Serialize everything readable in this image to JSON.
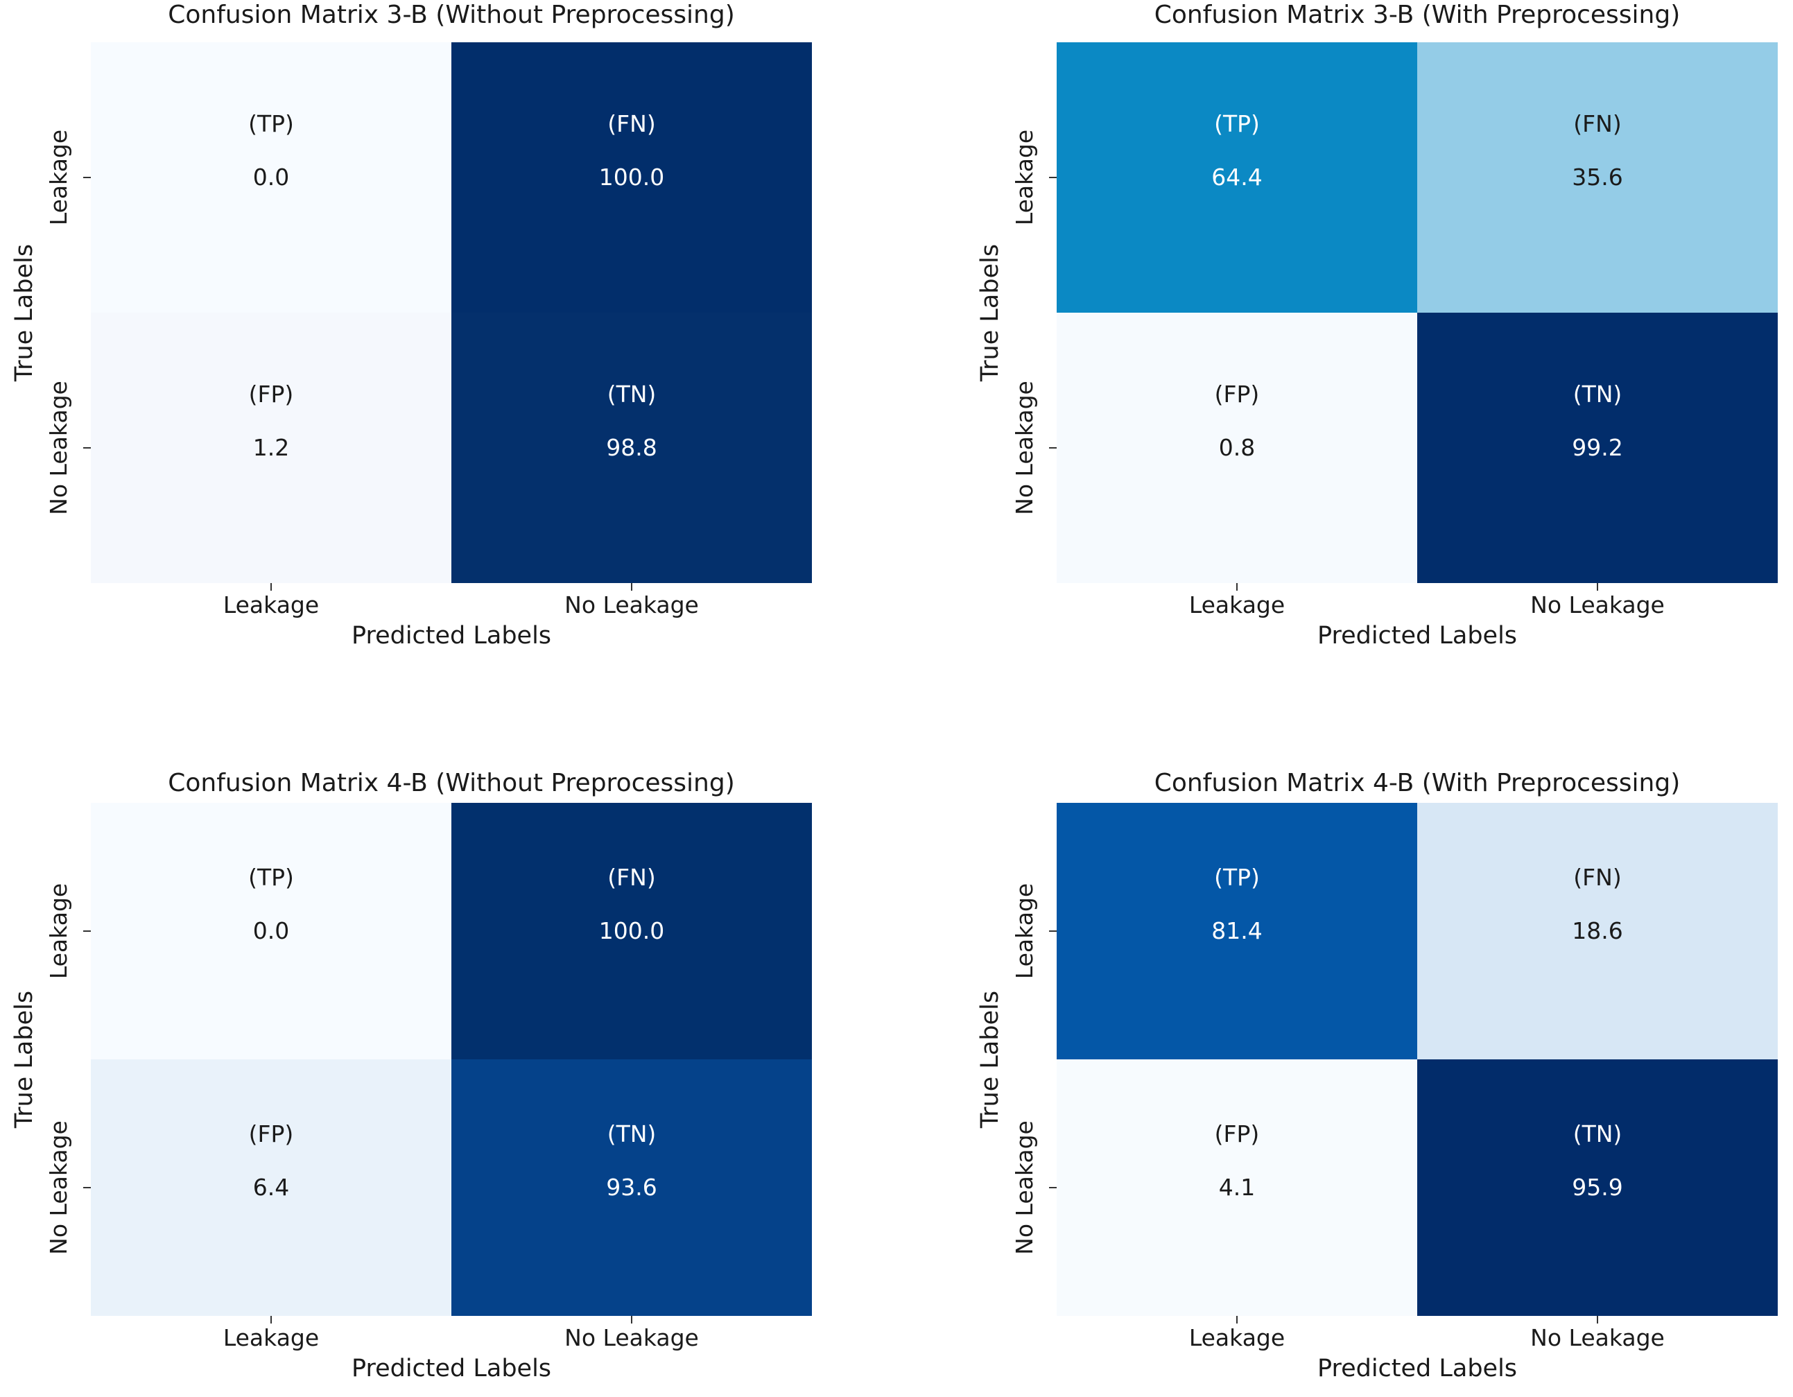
{
  "figure": {
    "background": "#ffffff",
    "text_color_dark": "#1a1a1a",
    "text_color_light": "#ffffff",
    "colormap": "Blues",
    "plots": [
      {
        "title": "Confusion Matrix 3-B (Without Preprocessing)",
        "xlabel": "Predicted Labels",
        "ylabel": "True Labels",
        "xticks": [
          "Leakage",
          "No Leakage"
        ],
        "yticks": [
          "Leakage",
          "No Leakage"
        ],
        "cells": [
          {
            "key": "TP",
            "label": "(TP)",
            "value": "0.0",
            "bg": "#f7fbff",
            "fg": "#1a1a1a"
          },
          {
            "key": "FN",
            "label": "(FN)",
            "value": "100.0",
            "bg": "#022e6b",
            "fg": "#ffffff"
          },
          {
            "key": "FP",
            "label": "(FP)",
            "value": "1.2",
            "bg": "#f5f8fd",
            "fg": "#1a1a1a"
          },
          {
            "key": "TN",
            "label": "(TN)",
            "value": "98.8",
            "bg": "#04306c",
            "fg": "#ffffff"
          }
        ]
      },
      {
        "title": "Confusion Matrix 3-B (With Preprocessing)",
        "xlabel": "Predicted Labels",
        "ylabel": "True Labels",
        "xticks": [
          "Leakage",
          "No Leakage"
        ],
        "yticks": [
          "Leakage",
          "No Leakage"
        ],
        "cells": [
          {
            "key": "TP",
            "label": "(TP)",
            "value": "64.4",
            "bg": "#0b89c4",
            "fg": "#ffffff"
          },
          {
            "key": "FN",
            "label": "(FN)",
            "value": "35.6",
            "bg": "#94cce7",
            "fg": "#1a1a1a"
          },
          {
            "key": "FP",
            "label": "(FP)",
            "value": "0.8",
            "bg": "#f6fafe",
            "fg": "#1a1a1a"
          },
          {
            "key": "TN",
            "label": "(TN)",
            "value": "99.2",
            "bg": "#022d6b",
            "fg": "#ffffff"
          }
        ]
      },
      {
        "title": "Confusion Matrix 4-B (Without Preprocessing)",
        "xlabel": "Predicted Labels",
        "ylabel": "True Labels",
        "xticks": [
          "Leakage",
          "No Leakage"
        ],
        "yticks": [
          "Leakage",
          "No Leakage"
        ],
        "cells": [
          {
            "key": "TP",
            "label": "(TP)",
            "value": "0.0",
            "bg": "#f7fbff",
            "fg": "#1a1a1a"
          },
          {
            "key": "FN",
            "label": "(FN)",
            "value": "100.0",
            "bg": "#02306d",
            "fg": "#ffffff"
          },
          {
            "key": "FP",
            "label": "(FP)",
            "value": "6.4",
            "bg": "#e9f2fa",
            "fg": "#1a1a1a"
          },
          {
            "key": "TN",
            "label": "(TN)",
            "value": "93.6",
            "bg": "#05428a",
            "fg": "#ffffff"
          }
        ]
      },
      {
        "title": "Confusion Matrix 4-B (With Preprocessing)",
        "xlabel": "Predicted Labels",
        "ylabel": "True Labels",
        "xticks": [
          "Leakage",
          "No Leakage"
        ],
        "yticks": [
          "Leakage",
          "No Leakage"
        ],
        "cells": [
          {
            "key": "TP",
            "label": "(TP)",
            "value": "81.4",
            "bg": "#0457a7",
            "fg": "#ffffff"
          },
          {
            "key": "FN",
            "label": "(FN)",
            "value": "18.6",
            "bg": "#d7e7f5",
            "fg": "#1a1a1a"
          },
          {
            "key": "FP",
            "label": "(FP)",
            "value": "4.1",
            "bg": "#f7fbfe",
            "fg": "#1a1a1a"
          },
          {
            "key": "TN",
            "label": "(TN)",
            "value": "95.9",
            "bg": "#022c6a",
            "fg": "#ffffff"
          }
        ]
      }
    ]
  },
  "chart_data": [
    {
      "type": "heatmap",
      "title": "Confusion Matrix 3-B (Without Preprocessing)",
      "xlabel": "Predicted Labels",
      "ylabel": "True Labels",
      "x_categories": [
        "Leakage",
        "No Leakage"
      ],
      "y_categories": [
        "Leakage",
        "No Leakage"
      ],
      "series": [
        {
          "name": "Leakage",
          "labels": [
            "(TP)",
            "(FN)"
          ],
          "values": [
            0.0,
            100.0
          ]
        },
        {
          "name": "No Leakage",
          "labels": [
            "(FP)",
            "(TN)"
          ],
          "values": [
            1.2,
            98.8
          ]
        }
      ],
      "colormap": "Blues",
      "vmin": 0,
      "vmax": 100,
      "annotated": true,
      "colorbar": false
    },
    {
      "type": "heatmap",
      "title": "Confusion Matrix 3-B (With Preprocessing)",
      "xlabel": "Predicted Labels",
      "ylabel": "True Labels",
      "x_categories": [
        "Leakage",
        "No Leakage"
      ],
      "y_categories": [
        "Leakage",
        "No Leakage"
      ],
      "series": [
        {
          "name": "Leakage",
          "labels": [
            "(TP)",
            "(FN)"
          ],
          "values": [
            64.4,
            35.6
          ]
        },
        {
          "name": "No Leakage",
          "labels": [
            "(FP)",
            "(TN)"
          ],
          "values": [
            0.8,
            99.2
          ]
        }
      ],
      "colormap": "Blues",
      "vmin": 0,
      "vmax": 100,
      "annotated": true,
      "colorbar": false
    },
    {
      "type": "heatmap",
      "title": "Confusion Matrix 4-B (Without Preprocessing)",
      "xlabel": "Predicted Labels",
      "ylabel": "True Labels",
      "x_categories": [
        "Leakage",
        "No Leakage"
      ],
      "y_categories": [
        "Leakage",
        "No Leakage"
      ],
      "series": [
        {
          "name": "Leakage",
          "labels": [
            "(TP)",
            "(FN)"
          ],
          "values": [
            0.0,
            100.0
          ]
        },
        {
          "name": "No Leakage",
          "labels": [
            "(FP)",
            "(TN)"
          ],
          "values": [
            6.4,
            93.6
          ]
        }
      ],
      "colormap": "Blues",
      "vmin": 0,
      "vmax": 100,
      "annotated": true,
      "colorbar": false
    },
    {
      "type": "heatmap",
      "title": "Confusion Matrix 4-B (With Preprocessing)",
      "xlabel": "Predicted Labels",
      "ylabel": "True Labels",
      "x_categories": [
        "Leakage",
        "No Leakage"
      ],
      "y_categories": [
        "Leakage",
        "No Leakage"
      ],
      "series": [
        {
          "name": "Leakage",
          "labels": [
            "(TP)",
            "(FN)"
          ],
          "values": [
            81.4,
            18.6
          ]
        },
        {
          "name": "No Leakage",
          "labels": [
            "(FP)",
            "(TN)"
          ],
          "values": [
            4.1,
            95.9
          ]
        }
      ],
      "colormap": "Blues",
      "vmin": 0,
      "vmax": 100,
      "annotated": true,
      "colorbar": false
    }
  ]
}
